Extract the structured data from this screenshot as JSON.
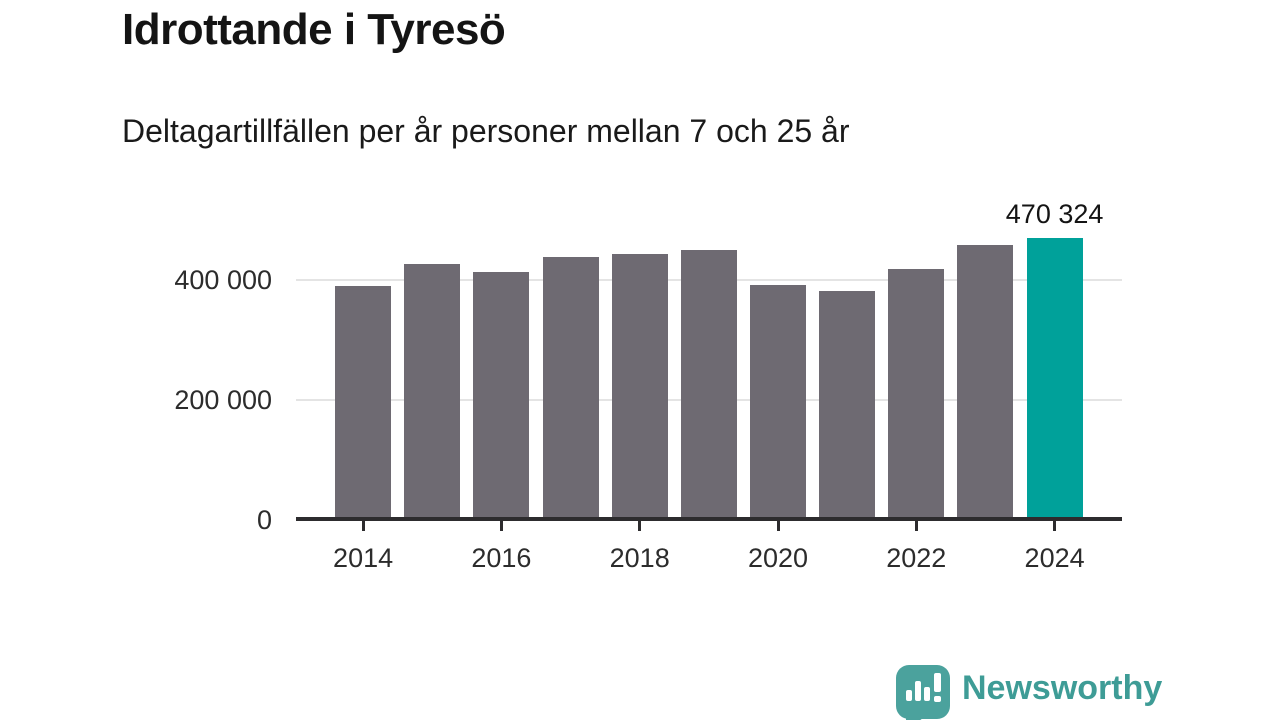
{
  "header": {
    "title": "Idrottande i Tyresö",
    "subtitle": "Deltagartillfällen per år personer mellan 7 och 25 år"
  },
  "chart_data": {
    "type": "bar",
    "title": "Idrottande i Tyresö",
    "subtitle": "Deltagartillfällen per år personer mellan 7 och 25 år",
    "categories": [
      "2014",
      "2015",
      "2016",
      "2017",
      "2018",
      "2019",
      "2020",
      "2021",
      "2022",
      "2023",
      "2024"
    ],
    "values": [
      390000,
      426000,
      413000,
      438000,
      444000,
      450000,
      392000,
      381000,
      419000,
      459000,
      470324
    ],
    "xlabel": "",
    "ylabel": "",
    "ylim": [
      0,
      500000
    ],
    "grid": true,
    "legend": "none",
    "ytick_values": [
      0,
      200000,
      400000
    ],
    "ytick_labels": [
      "0",
      "200 000",
      "400 000"
    ],
    "xtick_labels": [
      "2014",
      "2016",
      "2018",
      "2020",
      "2022",
      "2024"
    ],
    "highlight_index": 10,
    "annotation": {
      "index": 10,
      "text": "470 324"
    },
    "bar_color": "#6E6A72",
    "highlight_color": "#00A19A",
    "axis_color": "#2D2C2E",
    "grid_color": "#E4E4E4"
  },
  "footer": {
    "brand": "Newsworthy",
    "logo_icon": "newsworthy-logo-icon",
    "brand_color": "#3E9C96",
    "icon_bg_color": "#4BA29D"
  }
}
